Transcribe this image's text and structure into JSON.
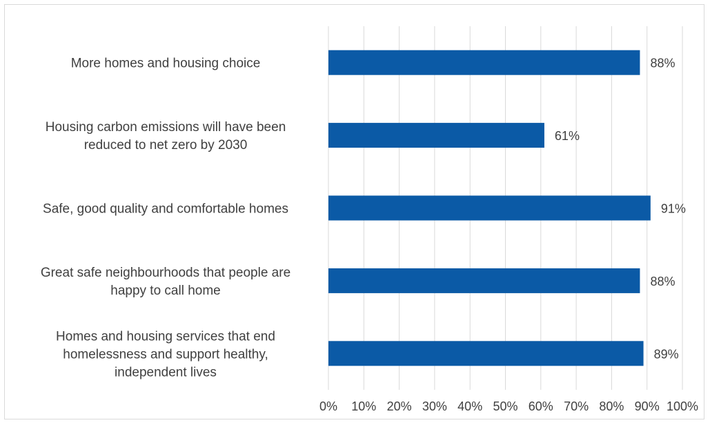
{
  "chart_data": {
    "type": "bar",
    "orientation": "horizontal",
    "categories": [
      [
        "More homes and housing choice"
      ],
      [
        "Housing carbon emissions will have been",
        "reduced to net zero by 2030"
      ],
      [
        "Safe, good quality and comfortable homes"
      ],
      [
        "Great safe neighbourhoods that people are",
        "happy to call home"
      ],
      [
        "Homes and housing services that end",
        "homelessness and support healthy,",
        "independent lives"
      ]
    ],
    "values": [
      88,
      61,
      91,
      88,
      89
    ],
    "data_labels": [
      "88%",
      "61%",
      "91%",
      "88%",
      "89%"
    ],
    "xlim": [
      0,
      100
    ],
    "x_ticks": [
      "0%",
      "10%",
      "20%",
      "30%",
      "40%",
      "50%",
      "60%",
      "70%",
      "80%",
      "90%",
      "100%"
    ],
    "grid": "vertical",
    "legend": "none",
    "bar_color": "#0B5AA6",
    "grid_color": "#d9d9d9"
  }
}
